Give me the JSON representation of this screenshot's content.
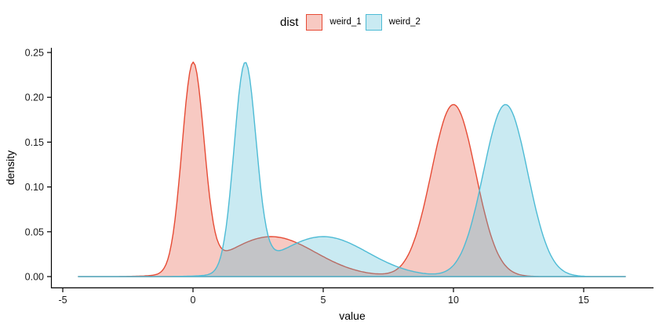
{
  "chart_data": {
    "type": "density",
    "title": "",
    "legend_position": "top",
    "legend": {
      "title": "dist",
      "items": [
        {
          "label": "weird_1",
          "stroke": "#E64B35",
          "fill": "rgba(230,75,53,0.30)"
        },
        {
          "label": "weird_2",
          "stroke": "#4DBBD5",
          "fill": "rgba(77,187,213,0.30)"
        }
      ]
    },
    "xlabel": "value",
    "ylabel": "density",
    "x_tick_labels": [
      "-5",
      "0",
      "5",
      "10",
      "15"
    ],
    "x_tick_values": [
      -5,
      0,
      5,
      10,
      15
    ],
    "y_tick_labels": [
      "0.00",
      "0.05",
      "0.10",
      "0.15",
      "0.20",
      "0.25"
    ],
    "y_tick_values": [
      0,
      0.05,
      0.1,
      0.15,
      0.2,
      0.25
    ],
    "xlim": [
      -5.45,
      17.65
    ],
    "ylim": [
      0,
      0.2553
    ],
    "grid": false,
    "curve_x_range": [
      -4.4,
      16.6
    ],
    "overlap_fill_observed": "#C4C5C8",
    "series": [
      {
        "name": "weird_1",
        "stroke": "#E64B35",
        "fill": "rgba(230,75,53,0.30)",
        "fill_alpha": 0.3,
        "components": [
          {
            "mu": 0,
            "sigma": 0.42,
            "weight": 0.242
          },
          {
            "mu": 3,
            "sigma": 1.7,
            "weight": 0.19
          },
          {
            "mu": 10,
            "sigma": 0.85,
            "weight": 0.409
          }
        ],
        "key_points": [
          {
            "x": 0,
            "density": 0.24
          },
          {
            "x": 1.5,
            "density": 0.034
          },
          {
            "x": 3,
            "density": 0.046
          },
          {
            "x": 7.6,
            "density": 0.005
          },
          {
            "x": 10,
            "density": 0.192
          }
        ]
      },
      {
        "name": "weird_2",
        "stroke": "#4DBBD5",
        "fill": "rgba(77,187,213,0.30)",
        "fill_alpha": 0.3,
        "components": [
          {
            "mu": 2,
            "sigma": 0.42,
            "weight": 0.242
          },
          {
            "mu": 5,
            "sigma": 1.7,
            "weight": 0.19
          },
          {
            "mu": 12,
            "sigma": 0.85,
            "weight": 0.409
          }
        ],
        "key_points": [
          {
            "x": 2,
            "density": 0.24
          },
          {
            "x": 3.5,
            "density": 0.034
          },
          {
            "x": 5,
            "density": 0.046
          },
          {
            "x": 9.6,
            "density": 0.005
          },
          {
            "x": 12,
            "density": 0.192
          }
        ]
      }
    ]
  }
}
